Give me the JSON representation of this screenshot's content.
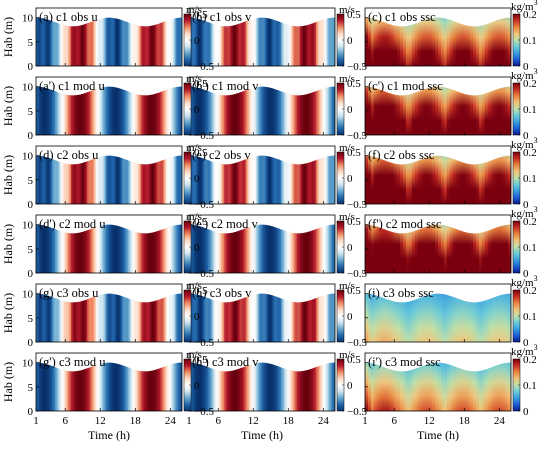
{
  "figure": {
    "xlabel": "Time (h)",
    "ylabel": "Hab (m)",
    "x_ticks": [
      1,
      6,
      12,
      18,
      24
    ],
    "y_ticks": [
      0,
      5,
      10
    ]
  },
  "colorbars": {
    "velocity": {
      "unit": "m/s",
      "ticks": [
        "0.5",
        "0",
        "−0.5"
      ],
      "range": [
        -0.5,
        0.5
      ]
    },
    "ssc": {
      "unit_base": "kg/m",
      "unit_sup": "3",
      "ticks": [
        "0.2",
        "0.1",
        "0"
      ],
      "range": [
        0,
        0.2
      ]
    }
  },
  "colors": {
    "diverging": [
      "#08306b",
      "#2166ac",
      "#67a9cf",
      "#d1e5f0",
      "#ffffff",
      "#fddbc7",
      "#ef8a62",
      "#b2182b",
      "#67000d"
    ],
    "sequential": [
      "#0a1a8c",
      "#1d5fd6",
      "#3aa0e0",
      "#6ccbd8",
      "#bfe0a8",
      "#f2c47a",
      "#e8843e",
      "#c83024",
      "#7a0010"
    ]
  },
  "chart_data": {
    "type": "heatmap",
    "x_range": [
      1,
      26
    ],
    "y_range": [
      0,
      12
    ],
    "panels": [
      {
        "label": "(a) c1 obs u",
        "variable": "u",
        "case": "c1",
        "source": "obs"
      },
      {
        "label": "(b) c1 obs v",
        "variable": "v",
        "case": "c1",
        "source": "obs"
      },
      {
        "label": "(c) c1 obs ssc",
        "variable": "ssc",
        "case": "c1",
        "source": "obs"
      },
      {
        "label": "(a') c1 mod u",
        "variable": "u",
        "case": "c1",
        "source": "mod"
      },
      {
        "label": "(b') c1 mod v",
        "variable": "v",
        "case": "c1",
        "source": "mod"
      },
      {
        "label": "(c') c1 mod ssc",
        "variable": "ssc",
        "case": "c1",
        "source": "mod"
      },
      {
        "label": "(d) c2 obs u",
        "variable": "u",
        "case": "c2",
        "source": "obs"
      },
      {
        "label": "(e) c2 obs v",
        "variable": "v",
        "case": "c2",
        "source": "obs"
      },
      {
        "label": "(f) c2 obs ssc",
        "variable": "ssc",
        "case": "c2",
        "source": "obs"
      },
      {
        "label": "(d') c2 mod u",
        "variable": "u",
        "case": "c2",
        "source": "mod"
      },
      {
        "label": "(e') c2 mod v",
        "variable": "v",
        "case": "c2",
        "source": "mod"
      },
      {
        "label": "(f') c2 mod ssc",
        "variable": "ssc",
        "case": "c2",
        "source": "mod"
      },
      {
        "label": "(g) c3 obs u",
        "variable": "u",
        "case": "c3",
        "source": "obs"
      },
      {
        "label": "(h) c3 obs v",
        "variable": "v",
        "case": "c3",
        "source": "obs"
      },
      {
        "label": "(i) c3 obs ssc",
        "variable": "ssc",
        "case": "c3",
        "source": "obs"
      },
      {
        "label": "(g') c3 mod u",
        "variable": "u",
        "case": "c3",
        "source": "mod"
      },
      {
        "label": "(h') c3 mod v",
        "variable": "v",
        "case": "c3",
        "source": "mod"
      },
      {
        "label": "(i') c3 mod ssc",
        "variable": "ssc",
        "case": "c3",
        "source": "mod"
      }
    ]
  }
}
